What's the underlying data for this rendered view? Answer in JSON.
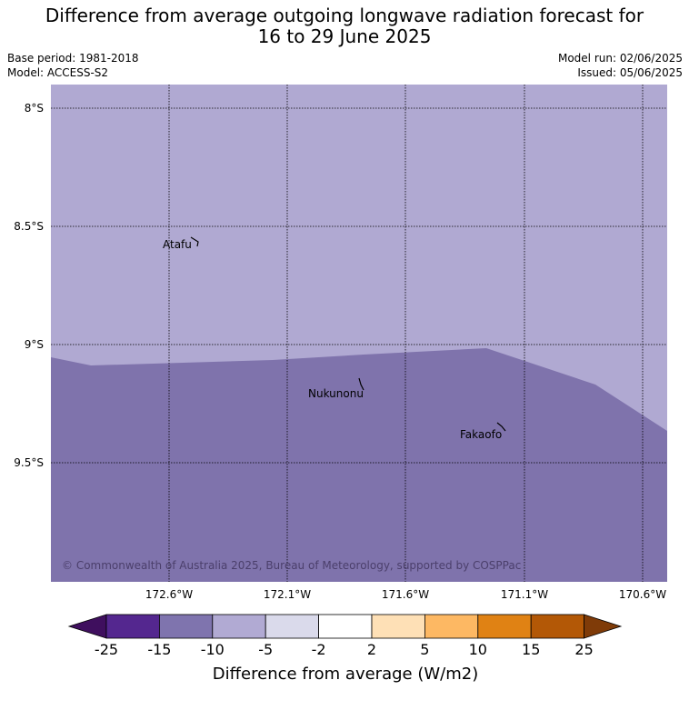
{
  "title_line1": "Difference from average outgoing longwave radiation forecast for",
  "title_line2": "16 to 29 June 2025",
  "base_period": "Base period: 1981-2018",
  "model": "Model: ACCESS-S2",
  "model_run": "Model run: 02/06/2025",
  "issued": "Issued: 05/06/2025",
  "lat_labels": [
    "8°S",
    "8.5°S",
    "9°S",
    "9.5°S"
  ],
  "lon_labels": [
    "172.6°W",
    "172.1°W",
    "171.6°W",
    "171.1°W",
    "170.6°W"
  ],
  "places": {
    "atafu": "Atafu",
    "nukunonu": "Nukunonu",
    "fakaofo": "Fakaofo"
  },
  "regions": {
    "north_class": "-10 to -5",
    "south_class": "-15 to -10"
  },
  "credit": "© Commonwealth of Australia 2025, Bureau of Meteorology, supported by COSPPac",
  "colorbar": {
    "title": "Difference from average (W/m2)",
    "ticks": [
      "-25",
      "-15",
      "-10",
      "-5",
      "-2",
      "2",
      "5",
      "10",
      "15",
      "25"
    ],
    "colors": [
      "#3f0f5e",
      "#54278f",
      "#7f74ae",
      "#b1aad3",
      "#dadaeb",
      "#ffffff",
      "#fee0b6",
      "#fdb863",
      "#e08214",
      "#b35806",
      "#7f3b08"
    ]
  },
  "colors": {
    "north_fill": "#b0a9d2",
    "south_fill": "#7f73ac"
  }
}
